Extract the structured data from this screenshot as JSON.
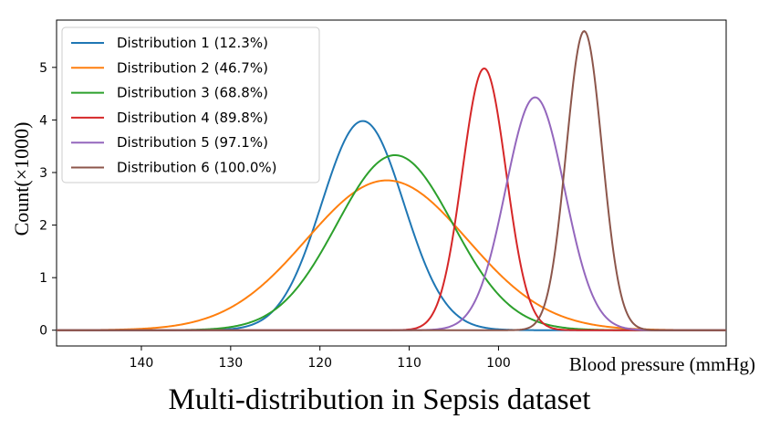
{
  "caption": "Multi-distribution in Sepsis dataset",
  "chart_data": {
    "type": "line",
    "title": "",
    "xlabel": "Blood pressure (mmHg)",
    "ylabel": "Count(×1000)",
    "x_reversed": true,
    "xlim": [
      149.5,
      74.5
    ],
    "ylim": [
      -0.3,
      5.9
    ],
    "x_ticks": [
      140,
      130,
      120,
      110,
      100
    ],
    "x_tick_labels": [
      "140",
      "130",
      "120",
      "110",
      "100"
    ],
    "y_ticks": [
      0,
      1,
      2,
      3,
      4,
      5
    ],
    "y_tick_labels": [
      "0",
      "1",
      "2",
      "3",
      "4",
      "5"
    ],
    "grid": false,
    "legend_position": "top-left",
    "series": [
      {
        "name": "Distribution 1 (12.3%)",
        "color": "#1f77b4",
        "peak_x": 115.2,
        "peak_y": 3.98,
        "sd": 4.6
      },
      {
        "name": "Distribution 2 (46.7%)",
        "color": "#ff7f0e",
        "peak_x": 112.5,
        "peak_y": 2.85,
        "sd": 9.0
      },
      {
        "name": "Distribution 3 (68.8%)",
        "color": "#2ca02c",
        "peak_x": 111.6,
        "peak_y": 3.33,
        "sd": 6.5
      },
      {
        "name": "Distribution 4 (89.8%)",
        "color": "#d62728",
        "peak_x": 101.6,
        "peak_y": 4.98,
        "sd": 2.45
      },
      {
        "name": "Distribution 5 (97.1%)",
        "color": "#9467bd",
        "peak_x": 95.9,
        "peak_y": 4.43,
        "sd": 3.3
      },
      {
        "name": "Distribution 6 (100.0%)",
        "color": "#8c564b",
        "peak_x": 90.4,
        "peak_y": 5.69,
        "sd": 2.0
      }
    ]
  }
}
